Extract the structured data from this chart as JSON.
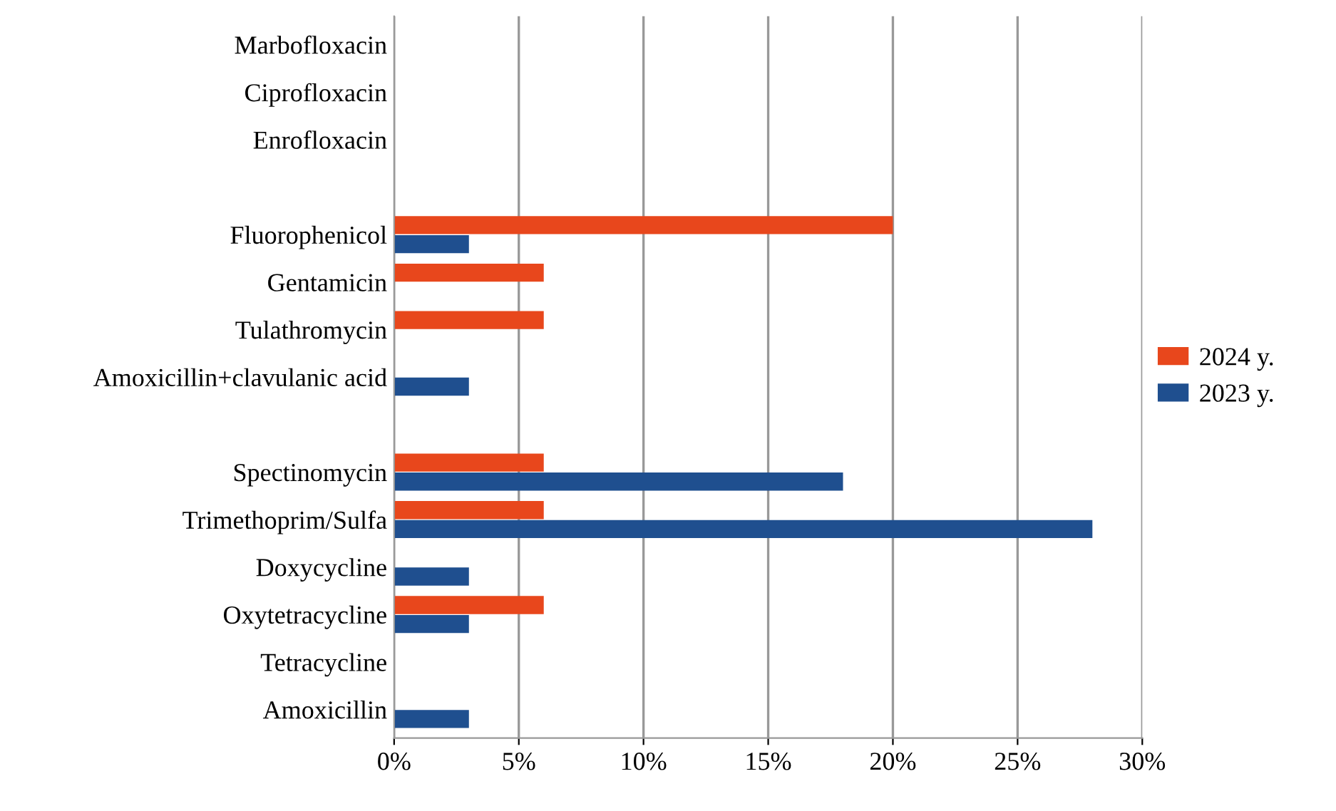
{
  "chart_data": {
    "type": "bar",
    "orientation": "horizontal",
    "categories": [
      "Marbofloxacin",
      "Ciprofloxacin",
      "Enrofloxacin",
      null,
      "Fluorophenicol",
      "Gentamicin",
      "Tulathromycin",
      "Amoxicillin+clavulanic acid",
      null,
      "Spectinomycin",
      "Trimethoprim/Sulfa",
      "Doxycycline",
      "Oxytetracycline",
      "Tetracycline",
      "Amoxicillin"
    ],
    "series": [
      {
        "name": "2024 y.",
        "color": "#e8471c",
        "values": [
          0,
          0,
          0,
          null,
          20,
          6,
          6,
          0,
          null,
          6,
          6,
          0,
          6,
          0,
          0
        ]
      },
      {
        "name": "2023 y.",
        "color": "#1f4f8f",
        "values": [
          0,
          0,
          0,
          null,
          3,
          0,
          0,
          3,
          null,
          18,
          28,
          3,
          3,
          0,
          3
        ]
      }
    ],
    "xlim": [
      0,
      30
    ],
    "xticks": [
      {
        "value": 0,
        "label": "0%"
      },
      {
        "value": 5,
        "label": "5%"
      },
      {
        "value": 10,
        "label": "10%"
      },
      {
        "value": 15,
        "label": "15%"
      },
      {
        "value": 20,
        "label": "20%"
      },
      {
        "value": 25,
        "label": "25%"
      },
      {
        "value": 30,
        "label": "30%"
      }
    ],
    "grid": "x",
    "legend": "right"
  }
}
